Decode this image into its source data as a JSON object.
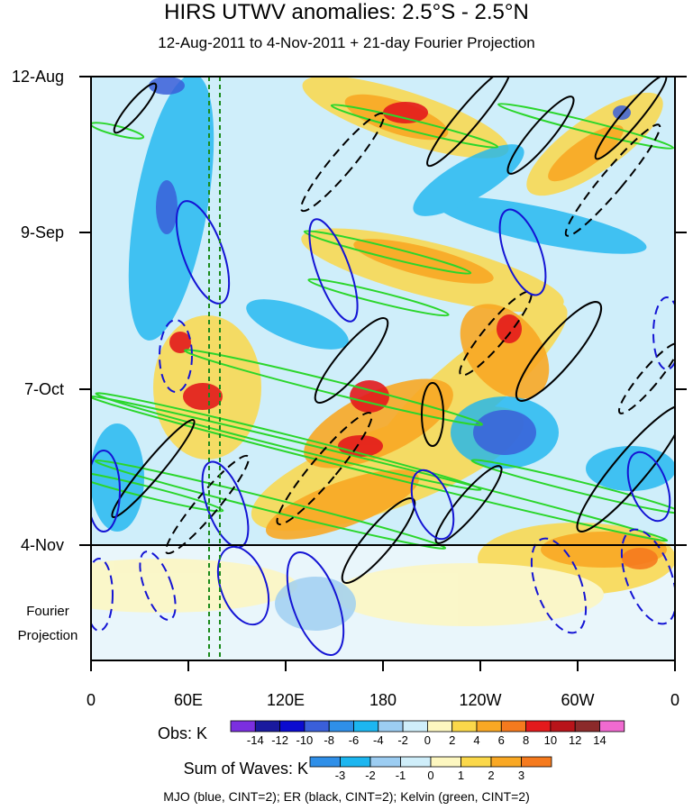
{
  "chart_data": {
    "type": "heatmap",
    "title": "HIRS UTWV anomalies: 2.5°S - 2.5°N",
    "subtitle": "12-Aug-2011 to 4-Nov-2011 + 21-day Fourier Projection",
    "y_ticks": [
      "12-Aug",
      "9-Sep",
      "7-Oct",
      "4-Nov"
    ],
    "projection_label_line1": "Fourier",
    "projection_label_line2": "Projection",
    "x_ticks": [
      "0",
      "60E",
      "120E",
      "180",
      "120W",
      "60W",
      "0"
    ],
    "obs_colorbar": {
      "label": "Obs: K",
      "levels": [
        "-14",
        "-12",
        "-10",
        "-8",
        "-6",
        "-4",
        "-2",
        "0",
        "2",
        "4",
        "6",
        "8",
        "10",
        "12",
        "14"
      ],
      "colors": [
        "#7b2fe0",
        "#1a1a9e",
        "#0b0bd0",
        "#3a5fd9",
        "#2f8fe8",
        "#1cb6f0",
        "#9ccdf2",
        "#cfeefa",
        "#fdf7c0",
        "#fbd84a",
        "#f9a824",
        "#f57a1e",
        "#e31a1c",
        "#b8141a",
        "#8b2a2a",
        "#f06ad0"
      ]
    },
    "waves_colorbar": {
      "label": "Sum of Waves: K",
      "levels": [
        "-3",
        "-2",
        "-1",
        "0",
        "1",
        "2",
        "3"
      ],
      "colors": [
        "#2f8fe8",
        "#1cb6f0",
        "#9ccdf2",
        "#cfeefa",
        "#fdf7c0",
        "#fbd84a",
        "#f9a824",
        "#f57a1e"
      ]
    },
    "contours": [
      {
        "name": "MJO",
        "color": "blue"
      },
      {
        "name": "ER",
        "color": "black"
      },
      {
        "name": "Kelvin",
        "color": "green"
      }
    ],
    "footer": "MJO (blue, CINT=2); ER (black, CINT=2); Kelvin (green, CINT=2)"
  }
}
